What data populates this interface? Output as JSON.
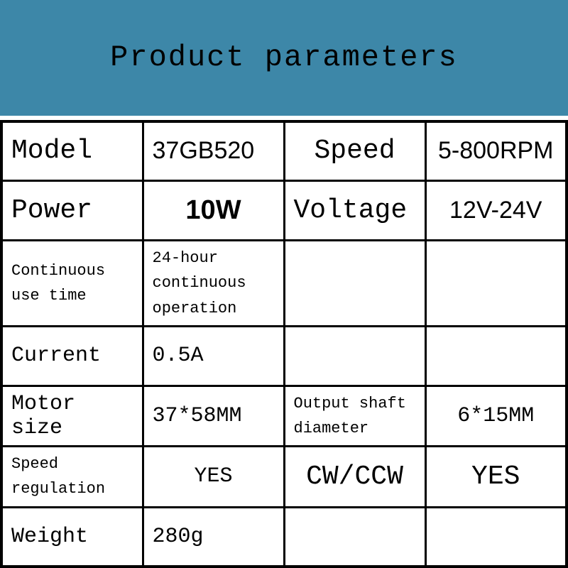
{
  "theme": {
    "header_bg": "#3d87a8",
    "border_color": "#000000",
    "text_color": "#000000",
    "background_color": "#ffffff",
    "title_fontsize": 42
  },
  "title": "Product parameters",
  "table": {
    "type": "table",
    "layout": "4-column specification grid",
    "column_widths": [
      "25%",
      "25%",
      "25%",
      "25%"
    ],
    "border_width": 3,
    "outer_border_width": 4,
    "rows": [
      {
        "cells": [
          {
            "text": "Model",
            "style": "f-xl mono"
          },
          {
            "text": "37GB520",
            "style": "f-lg sans"
          },
          {
            "text": "Speed",
            "style": "f-xl mono center"
          },
          {
            "text": "5-800RPM",
            "style": "f-lg sans center"
          }
        ]
      },
      {
        "cells": [
          {
            "text": "Power",
            "style": "f-xl mono"
          },
          {
            "text": "10W",
            "style": "f-xl f-bold center"
          },
          {
            "text": "Voltage",
            "style": "f-xl mono"
          },
          {
            "text": "12V-24V",
            "style": "f-lg sans center"
          }
        ]
      },
      {
        "cells": [
          {
            "text": "Continuous use time",
            "style": "f-sm mono"
          },
          {
            "text": "24-hour continuous operation",
            "style": "f-sm mono"
          },
          {
            "text": "",
            "style": ""
          },
          {
            "text": "",
            "style": ""
          }
        ]
      },
      {
        "cells": [
          {
            "text": "Current",
            "style": "f-md mono"
          },
          {
            "text": "0.5A",
            "style": "f-md mono"
          },
          {
            "text": "",
            "style": ""
          },
          {
            "text": "",
            "style": ""
          }
        ]
      },
      {
        "cells": [
          {
            "text": "Motor size",
            "style": "f-md mono"
          },
          {
            "text": "37*58MM",
            "style": "f-md mono"
          },
          {
            "text": "Output shaft diameter",
            "style": "f-sm mono"
          },
          {
            "text": "6*15MM",
            "style": "f-md mono center"
          }
        ]
      },
      {
        "cells": [
          {
            "text": "Speed regulation",
            "style": "f-sm mono"
          },
          {
            "text": "YES",
            "style": "f-md mono center"
          },
          {
            "text": "CW/CCW",
            "style": "f-xl mono center"
          },
          {
            "text": "YES",
            "style": "f-xl mono center"
          }
        ]
      },
      {
        "cells": [
          {
            "text": "Weight",
            "style": "f-md mono"
          },
          {
            "text": "280g",
            "style": "f-md mono"
          },
          {
            "text": "",
            "style": ""
          },
          {
            "text": "",
            "style": ""
          }
        ]
      }
    ]
  }
}
